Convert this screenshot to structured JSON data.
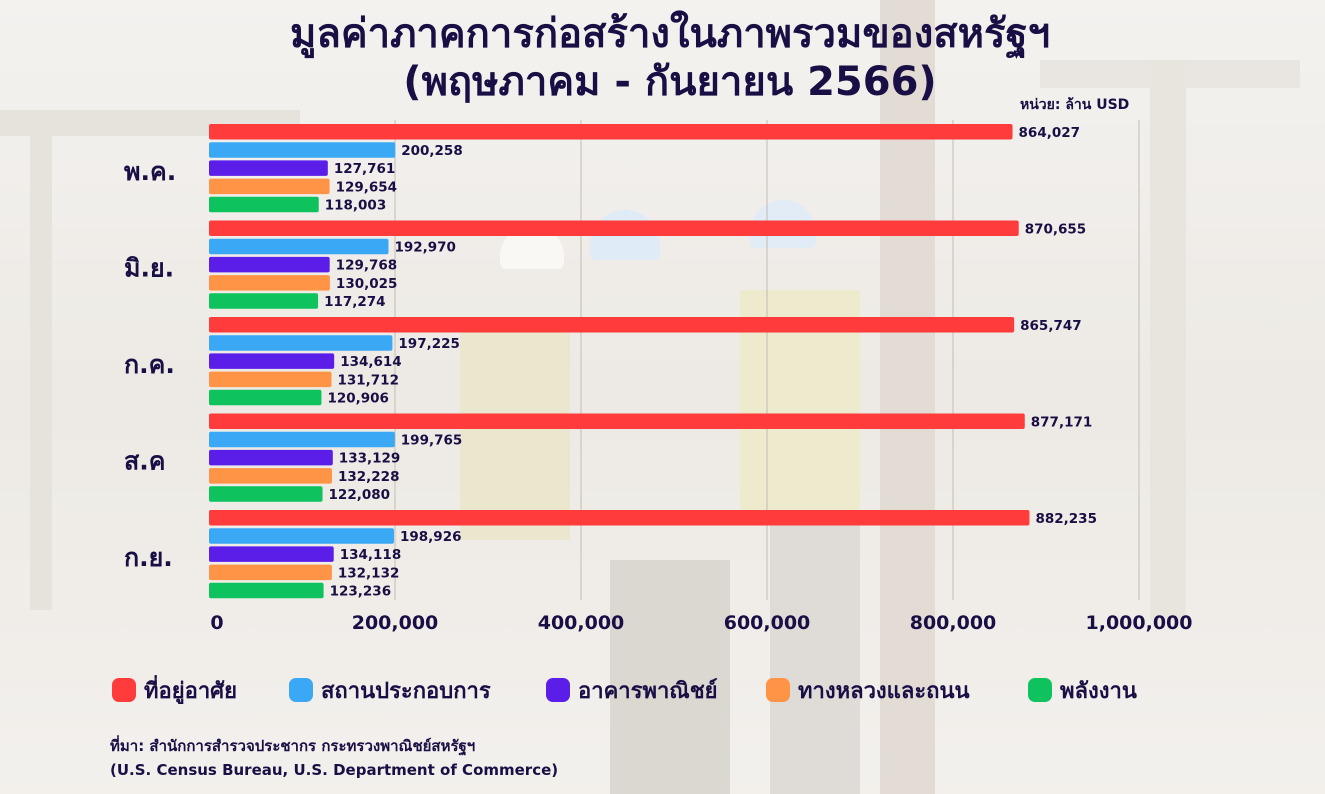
{
  "title_line1": "มูลค่าภาคการก่อสร้างในภาพรวมของสหรัฐฯ",
  "title_line2": "(พฤษภาคม - กันยายน 2566)",
  "unit": "หน่วย: ล้าน USD",
  "source_line1": "ที่มา: สำนักการสำรวจประชากร กระทรวงพาณิชย์สหรัฐฯ",
  "source_line2": "(U.S. Census Bureau, U.S. Department of Commerce)",
  "chart_data": {
    "type": "bar",
    "orientation": "horizontal",
    "categories": [
      "พ.ค.",
      "มิ.ย.",
      "ก.ค.",
      "ส.ค",
      "ก.ย."
    ],
    "series": [
      {
        "name": "ที่อยู่อาศัย",
        "color": "#ff3b3b",
        "values": [
          864027,
          870655,
          865747,
          877171,
          882235
        ],
        "labels": [
          "864,027",
          "870,655",
          "865,747",
          "877,171",
          "882,235"
        ]
      },
      {
        "name": "สถานประกอบการ",
        "color": "#3aa8f5",
        "values": [
          200258,
          192970,
          197225,
          199765,
          198926
        ],
        "labels": [
          "200,258",
          "192,970",
          "197,225",
          "199,765",
          "198,926"
        ]
      },
      {
        "name": "อาคารพาณิชย์",
        "color": "#5b1ee8",
        "values": [
          127761,
          129768,
          134614,
          133129,
          134118
        ],
        "labels": [
          "127,761",
          "129,768",
          "134,614",
          "133,129",
          "134,118"
        ]
      },
      {
        "name": "ทางหลวงและถนน",
        "color": "#ff9447",
        "values": [
          129654,
          130025,
          131712,
          132228,
          132132
        ],
        "labels": [
          "129,654",
          "130,025",
          "131,712",
          "132,228",
          "132,132"
        ]
      },
      {
        "name": "พลังงาน",
        "color": "#0ec25d",
        "values": [
          118003,
          117274,
          120906,
          122080,
          123236
        ],
        "labels": [
          "118,003",
          "117,274",
          "120,906",
          "122,080",
          "123,236"
        ]
      }
    ],
    "x_ticks": [
      0,
      200000,
      400000,
      600000,
      800000,
      1000000
    ],
    "x_tick_labels": [
      "0",
      "200,000",
      "400,000",
      "600,000",
      "800,000",
      "1,000,000"
    ],
    "xlim": [
      0,
      1000000
    ],
    "grid": true,
    "legend_position": "bottom"
  }
}
